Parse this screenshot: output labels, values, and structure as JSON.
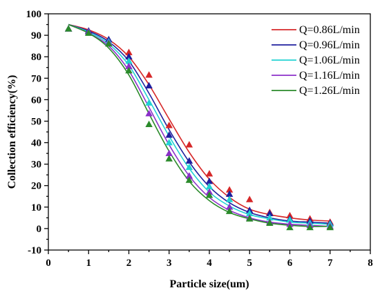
{
  "chart_data": {
    "type": "scatter",
    "title": "",
    "xlabel": "Particle size(um)",
    "ylabel": "Collection efficiency(%)",
    "xlim": [
      0,
      8
    ],
    "ylim": [
      -10,
      100
    ],
    "xticks": [
      "0",
      "1",
      "2",
      "3",
      "4",
      "5",
      "6",
      "7",
      "8"
    ],
    "yticks": [
      "-10",
      "0",
      "10",
      "20",
      "30",
      "40",
      "50",
      "60",
      "70",
      "80",
      "90",
      "100"
    ],
    "grid": false,
    "legend_position": "top-right",
    "marker": "triangle",
    "series": [
      {
        "name": "Q=0.86L/min",
        "color": "#d62728",
        "points": [
          [
            0.5,
            93
          ],
          [
            1.0,
            92
          ],
          [
            1.5,
            87
          ],
          [
            2.0,
            82
          ],
          [
            2.5,
            71.5
          ],
          [
            3.0,
            48
          ],
          [
            3.5,
            39
          ],
          [
            4.0,
            25.5
          ],
          [
            4.5,
            18
          ],
          [
            5.0,
            13.5
          ],
          [
            5.5,
            7.5
          ],
          [
            6.0,
            6
          ],
          [
            6.5,
            4.5
          ],
          [
            7.0,
            3
          ]
        ],
        "curve": [
          [
            0.5,
            95
          ],
          [
            1.0,
            92.5
          ],
          [
            1.5,
            88
          ],
          [
            2.0,
            80
          ],
          [
            2.5,
            67
          ],
          [
            3.0,
            51
          ],
          [
            3.5,
            35.5
          ],
          [
            4.0,
            23
          ],
          [
            4.5,
            14.5
          ],
          [
            5.0,
            9
          ],
          [
            5.5,
            6.5
          ],
          [
            6.0,
            5
          ],
          [
            6.5,
            4
          ],
          [
            7.0,
            3.5
          ]
        ]
      },
      {
        "name": "Q=0.96L/min",
        "color": "#1f1f9e",
        "points": [
          [
            0.5,
            93
          ],
          [
            1.0,
            92
          ],
          [
            1.5,
            88
          ],
          [
            2.0,
            80
          ],
          [
            2.5,
            66.5
          ],
          [
            3.0,
            43.5
          ],
          [
            3.5,
            31.5
          ],
          [
            4.0,
            22
          ],
          [
            4.5,
            16
          ],
          [
            5.0,
            8.5
          ],
          [
            5.5,
            7
          ],
          [
            6.0,
            4.5
          ],
          [
            6.5,
            3.5
          ],
          [
            7.0,
            2.5
          ]
        ],
        "curve": [
          [
            0.5,
            95
          ],
          [
            1.0,
            92
          ],
          [
            1.5,
            87
          ],
          [
            2.0,
            78
          ],
          [
            2.5,
            63
          ],
          [
            3.0,
            46
          ],
          [
            3.5,
            31
          ],
          [
            4.0,
            19.5
          ],
          [
            4.5,
            12
          ],
          [
            5.0,
            7.5
          ],
          [
            5.5,
            5
          ],
          [
            6.0,
            3.5
          ],
          [
            6.5,
            3
          ],
          [
            7.0,
            2.5
          ]
        ]
      },
      {
        "name": "Q=1.06L/min",
        "color": "#22d3d3",
        "points": [
          [
            0.5,
            93
          ],
          [
            1.0,
            91.5
          ],
          [
            1.5,
            87
          ],
          [
            2.0,
            78
          ],
          [
            2.5,
            58.5
          ],
          [
            3.0,
            40
          ],
          [
            3.5,
            28.5
          ],
          [
            4.0,
            19.5
          ],
          [
            4.5,
            13.5
          ],
          [
            5.0,
            7
          ],
          [
            5.5,
            5
          ],
          [
            6.0,
            4
          ],
          [
            6.5,
            2.5
          ],
          [
            7.0,
            2
          ]
        ],
        "curve": [
          [
            0.5,
            95
          ],
          [
            1.0,
            91.5
          ],
          [
            1.5,
            86
          ],
          [
            2.0,
            76
          ],
          [
            2.5,
            60
          ],
          [
            3.0,
            43
          ],
          [
            3.5,
            28
          ],
          [
            4.0,
            17
          ],
          [
            4.5,
            10.5
          ],
          [
            5.0,
            6.5
          ],
          [
            5.5,
            4.5
          ],
          [
            6.0,
            3
          ],
          [
            6.5,
            2.5
          ],
          [
            7.0,
            2
          ]
        ]
      },
      {
        "name": "Q=1.16L/min",
        "color": "#8b2fc9",
        "points": [
          [
            0.5,
            93
          ],
          [
            1.0,
            91.5
          ],
          [
            1.5,
            86.5
          ],
          [
            2.0,
            75.5
          ],
          [
            2.5,
            53.5
          ],
          [
            3.0,
            35
          ],
          [
            3.5,
            24.5
          ],
          [
            4.0,
            17
          ],
          [
            4.5,
            10
          ],
          [
            5.0,
            5
          ],
          [
            5.5,
            3
          ],
          [
            6.0,
            2
          ],
          [
            6.5,
            1.5
          ],
          [
            7.0,
            1
          ]
        ],
        "curve": [
          [
            0.5,
            95
          ],
          [
            1.0,
            91
          ],
          [
            1.5,
            85
          ],
          [
            2.0,
            73.5
          ],
          [
            2.5,
            56.5
          ],
          [
            3.0,
            39
          ],
          [
            3.5,
            24.5
          ],
          [
            4.0,
            14.5
          ],
          [
            4.5,
            8.5
          ],
          [
            5.0,
            5
          ],
          [
            5.5,
            3
          ],
          [
            6.0,
            2
          ],
          [
            6.5,
            1.5
          ],
          [
            7.0,
            1
          ]
        ]
      },
      {
        "name": "Q=1.26L/min",
        "color": "#2a8a2a",
        "points": [
          [
            0.5,
            93
          ],
          [
            1.0,
            91
          ],
          [
            1.5,
            86
          ],
          [
            2.0,
            73.5
          ],
          [
            2.5,
            48.5
          ],
          [
            3.0,
            32.5
          ],
          [
            3.5,
            22.5
          ],
          [
            4.0,
            15.5
          ],
          [
            4.5,
            8
          ],
          [
            5.0,
            4.5
          ],
          [
            5.5,
            2.5
          ],
          [
            6.0,
            0.5
          ],
          [
            6.5,
            0.5
          ],
          [
            7.0,
            0.5
          ]
        ],
        "curve": [
          [
            0.5,
            95
          ],
          [
            1.0,
            91
          ],
          [
            1.5,
            84
          ],
          [
            2.0,
            71.5
          ],
          [
            2.5,
            53.5
          ],
          [
            3.0,
            36
          ],
          [
            3.5,
            22
          ],
          [
            4.0,
            13
          ],
          [
            4.5,
            7.5
          ],
          [
            5.0,
            4.5
          ],
          [
            5.5,
            2.5
          ],
          [
            6.0,
            1.5
          ],
          [
            6.5,
            1
          ],
          [
            7.0,
            1
          ]
        ]
      }
    ]
  }
}
